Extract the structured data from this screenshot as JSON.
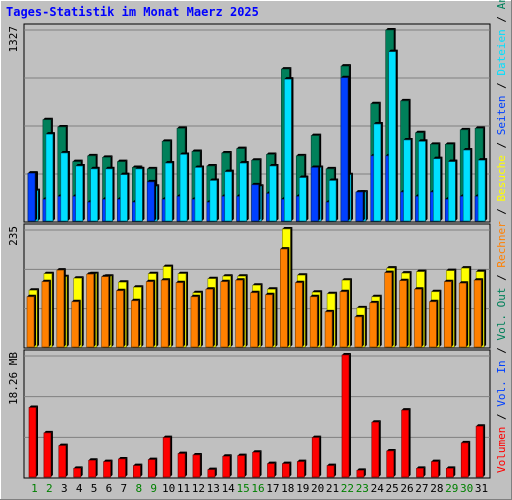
{
  "chart_data": {
    "type": "bar",
    "title": "Tages-Statistik im Monat Maerz 2025",
    "categories": [
      "1",
      "2",
      "3",
      "4",
      "5",
      "6",
      "7",
      "8",
      "9",
      "10",
      "11",
      "12",
      "13",
      "14",
      "15",
      "16",
      "17",
      "18",
      "19",
      "20",
      "21",
      "22",
      "23",
      "24",
      "25",
      "26",
      "27",
      "28",
      "29",
      "30",
      "31"
    ],
    "weekend_days": [
      "1",
      "2",
      "8",
      "9",
      "15",
      "16",
      "22",
      "23",
      "29",
      "30"
    ],
    "colors": {
      "title": "#0000ff",
      "background": "#c0c0c0",
      "plot_background": "#ffffff",
      "gridline": "#808080",
      "anfragen": "#00805a",
      "dateien": "#00e0ff",
      "seiten": "#0040ff",
      "besuche": "#ffff00",
      "rechner": "#ff8000",
      "volumen": "#ff0000",
      "weekday_label": "#000000",
      "weekend_label": "#008000"
    },
    "panels": [
      {
        "id": "requests",
        "max_label": "1327",
        "ymax": 1327,
        "series": [
          {
            "key": "anfragen",
            "values": [
              330,
              700,
              650,
              410,
              450,
              440,
              410,
              370,
              360,
              550,
              640,
              480,
              380,
              470,
              500,
              420,
              460,
              1050,
              450,
              590,
              360,
              1070,
              150,
              810,
              1320,
              830,
              610,
              530,
              530,
              630,
              640
            ]
          },
          {
            "key": "dateien",
            "values": [
              210,
              600,
              470,
              380,
              360,
              360,
              320,
              360,
              240,
              400,
              460,
              370,
              280,
              340,
              400,
              240,
              380,
              980,
              300,
              370,
              280,
              320,
              200,
              670,
              1170,
              560,
              550,
              430,
              410,
              490,
              420
            ]
          },
          {
            "key": "seiten",
            "values": [
              330,
              150,
              170,
              170,
              130,
              150,
              150,
              130,
              270,
              150,
              170,
              150,
              130,
              170,
              170,
              250,
              190,
              150,
              170,
              370,
              130,
              990,
              200,
              450,
              450,
              200,
              170,
              200,
              150,
              170,
              170
            ]
          }
        ]
      },
      {
        "id": "visits",
        "max_label": "235",
        "ymax": 235,
        "series": [
          {
            "key": "besuche",
            "values": [
              113,
              146,
              140,
              137,
              146,
              141,
              129,
              119,
              146,
              160,
              146,
              108,
              136,
              141,
              141,
              123,
              115,
              235,
              143,
              109,
              106,
              133,
              78,
              100,
              157,
              147,
              150,
              110,
              152,
              157,
              150
            ]
          },
          {
            "key": "rechner",
            "values": [
              100,
              130,
              153,
              90,
              145,
              140,
              112,
              92,
              130,
              133,
              128,
              100,
              115,
              130,
              133,
              108,
              104,
              195,
              128,
              100,
              70,
              110,
              60,
              88,
              148,
              132,
              115,
              90,
              130,
              127,
              133
            ]
          }
        ]
      },
      {
        "id": "volume",
        "max_label": "18.26 MB",
        "ymax": 18.26,
        "series": [
          {
            "key": "volumen",
            "values": [
              10.4,
              6.6,
              4.7,
              1.3,
              2.5,
              2.3,
              2.7,
              1.7,
              2.6,
              5.9,
              3.5,
              3.3,
              1.1,
              3.1,
              3.2,
              3.7,
              2.0,
              2.0,
              2.3,
              5.9,
              1.7,
              18.26,
              1.0,
              8.2,
              3.9,
              10.0,
              1.3,
              2.3,
              1.3,
              5.1,
              7.6
            ]
          }
        ]
      }
    ],
    "right_legend": [
      {
        "text": "Volumen",
        "color_key": "volumen"
      },
      {
        "text": " / ",
        "color_key": null
      },
      {
        "text": "Vol. In",
        "color_key": "seiten"
      },
      {
        "text": " / ",
        "color_key": null
      },
      {
        "text": "Vol. Out",
        "color_key": "anfragen"
      },
      {
        "text": " / ",
        "color_key": null
      },
      {
        "text": "Rechner",
        "color_key": "rechner"
      },
      {
        "text": " / ",
        "color_key": null
      },
      {
        "text": "Besuche",
        "color_key": "besuche"
      },
      {
        "text": " / ",
        "color_key": null
      },
      {
        "text": "Seiten",
        "color_key": "seiten"
      },
      {
        "text": " / ",
        "color_key": null
      },
      {
        "text": "Dateien",
        "color_key": "dateien"
      },
      {
        "text": " / ",
        "color_key": null
      },
      {
        "text": "Anfragen",
        "color_key": "anfragen"
      }
    ]
  }
}
